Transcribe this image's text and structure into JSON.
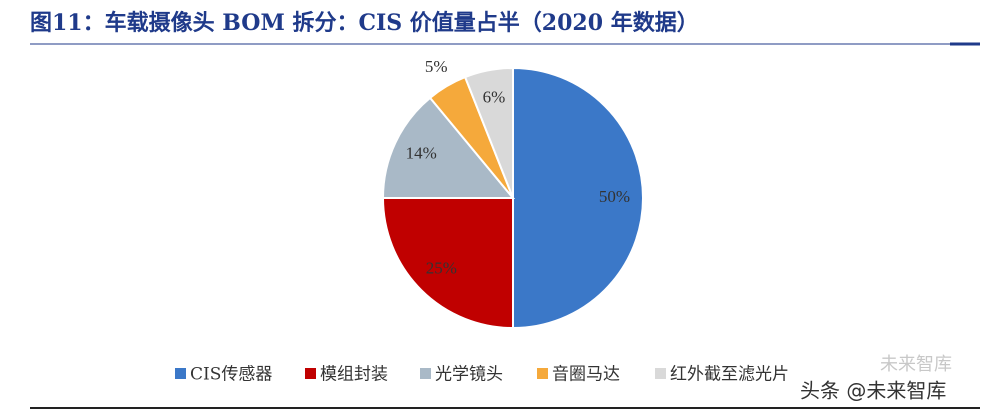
{
  "chart_data": {
    "type": "pie",
    "title": "图11：车载摄像头 BOM 拆分：CIS 价值量占半（2020 年数据）",
    "categories": [
      "CIS传感器",
      "模组封装",
      "光学镜头",
      "音圈马达",
      "红外截至滤光片"
    ],
    "values": [
      50,
      25,
      14,
      5,
      6
    ],
    "value_labels": [
      "50%",
      "25%",
      "14%",
      "5%",
      "6%"
    ],
    "colors": [
      "#3b78c8",
      "#c00000",
      "#a9b9c7",
      "#f5a93b",
      "#d9d9d9"
    ],
    "legend": "bottom"
  },
  "watermark": "头条 @未来智库",
  "watermark_faint": "未来智库"
}
